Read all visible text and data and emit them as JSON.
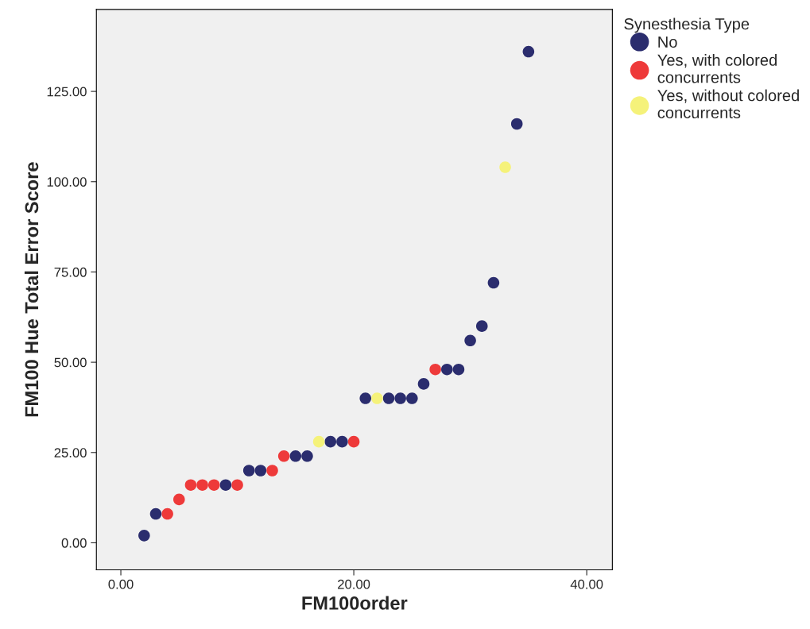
{
  "chart_data": {
    "type": "scatter",
    "xlabel": "FM100order",
    "ylabel": "FM100 Hue Total Error Score",
    "legend_title": "Synesthesia Type",
    "legend": "top right",
    "marker": "circle",
    "grid": false,
    "xlim": [
      -2.1,
      42.2
    ],
    "ylim": [
      -7.5,
      147.7
    ],
    "xticks": [
      {
        "value": 0,
        "label": "0.00"
      },
      {
        "value": 20,
        "label": "20.00"
      },
      {
        "value": 40,
        "label": "40.00"
      }
    ],
    "yticks": [
      {
        "value": 0,
        "label": "0.00"
      },
      {
        "value": 25,
        "label": "25.00"
      },
      {
        "value": 50,
        "label": "50.00"
      },
      {
        "value": 75,
        "label": "75.00"
      },
      {
        "value": 100,
        "label": "100.00"
      },
      {
        "value": 125,
        "label": "125.00"
      }
    ],
    "series": [
      {
        "name": "No",
        "color": "#2b2d6e",
        "x": [
          2,
          3,
          9,
          11,
          12,
          15,
          16,
          18,
          19,
          21,
          23,
          24,
          25,
          26,
          28,
          29,
          30,
          31,
          32,
          34,
          35
        ],
        "values": [
          2,
          8,
          16,
          20,
          20,
          24,
          24,
          28,
          28,
          40,
          40,
          40,
          40,
          44,
          48,
          48,
          56,
          60,
          72,
          116,
          136
        ]
      },
      {
        "name": "Yes, with colored\nconcurrents",
        "color": "#ee3a3a",
        "x": [
          4,
          5,
          6,
          7,
          8,
          10,
          13,
          14,
          20,
          27
        ],
        "values": [
          8,
          12,
          16,
          16,
          16,
          16,
          20,
          24,
          28,
          48
        ]
      },
      {
        "name": "Yes, without colored\nconcurrents",
        "color": "#f5f27a",
        "x": [
          17,
          22,
          33
        ],
        "values": [
          28,
          40,
          104
        ]
      }
    ]
  }
}
